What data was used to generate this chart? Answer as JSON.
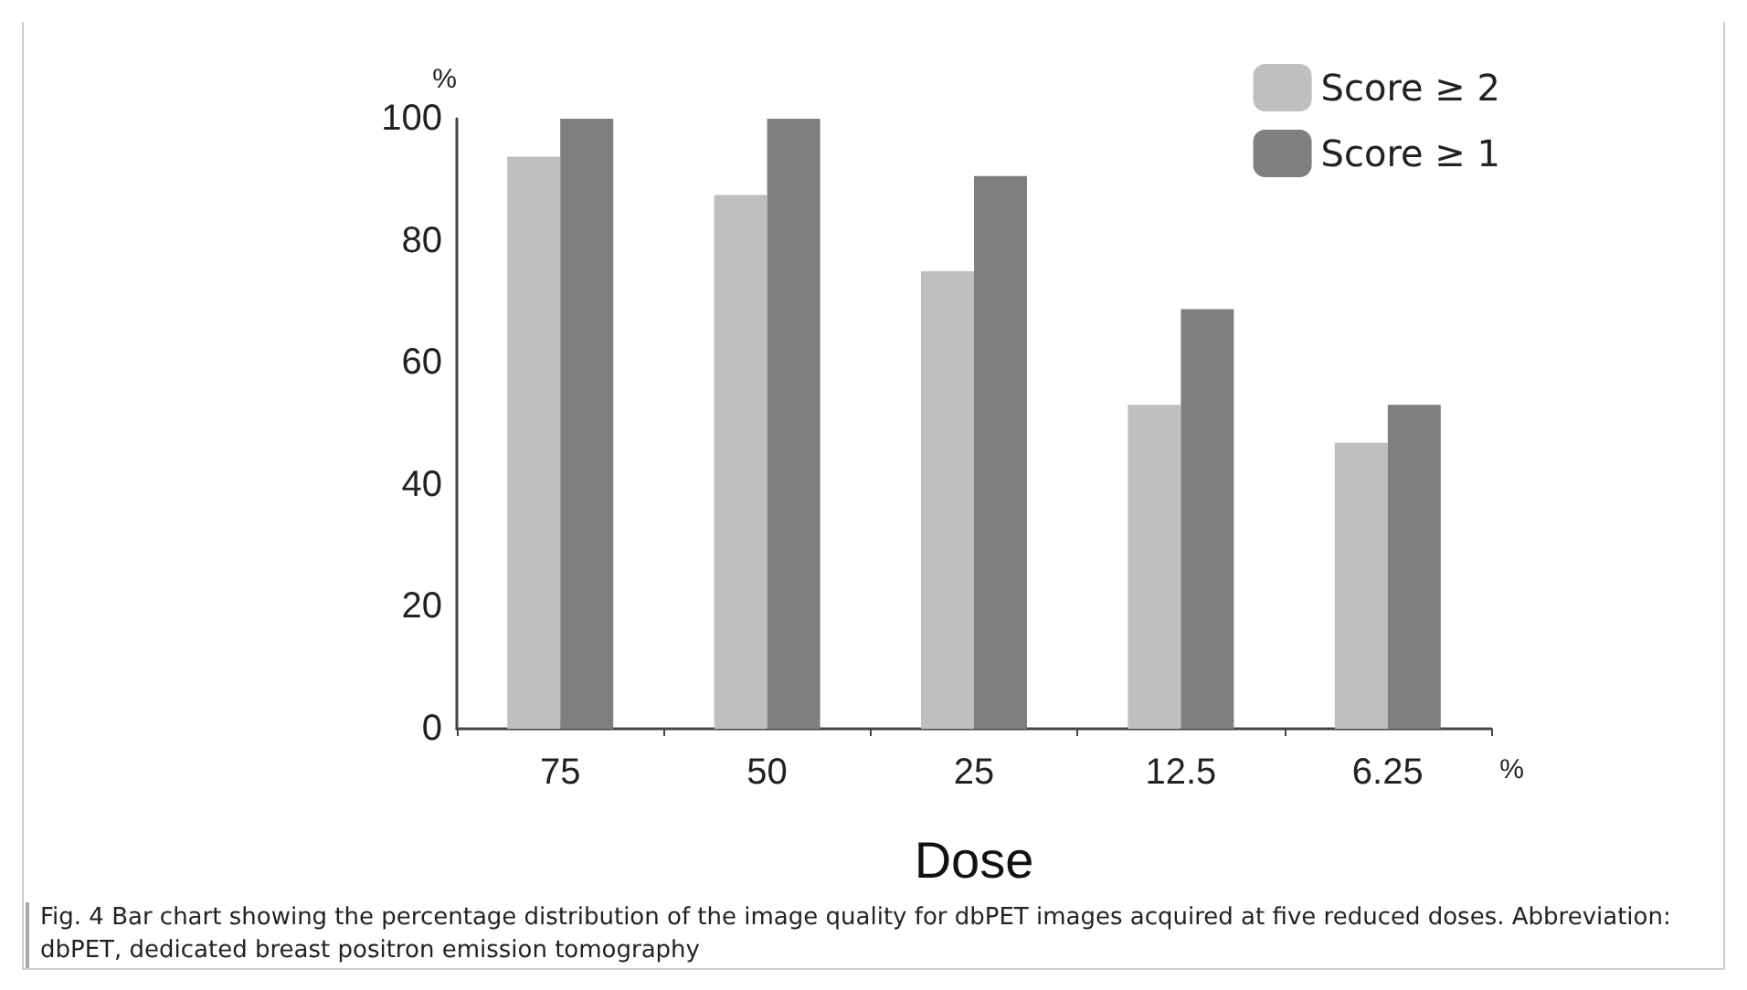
{
  "chart_data": {
    "type": "bar",
    "ylabel": "%",
    "xlabel": "Dose",
    "categories": [
      "75",
      "50",
      "25",
      "12.5",
      "6.25"
    ],
    "series": [
      {
        "name": "Score ≥ 2",
        "color": "#bfbfbf",
        "values": [
          93.8,
          87.5,
          75,
          53.1,
          46.9
        ]
      },
      {
        "name": "Score ≥ 1",
        "color": "#7f7f7f",
        "values": [
          100,
          100,
          90.6,
          68.8,
          53.1
        ]
      }
    ],
    "ylim": [
      0,
      100
    ],
    "yticks": [
      0,
      20,
      40,
      60,
      80,
      100
    ],
    "grid": false,
    "legend": "top right",
    "annotations": [
      "%",
      "Fig. 4 Bar chart showing the percentage distribution of the image quality for dbPET images acquired at five reduced doses. Abbreviation: dbPET, dedicated breast positron emission tomography"
    ]
  }
}
